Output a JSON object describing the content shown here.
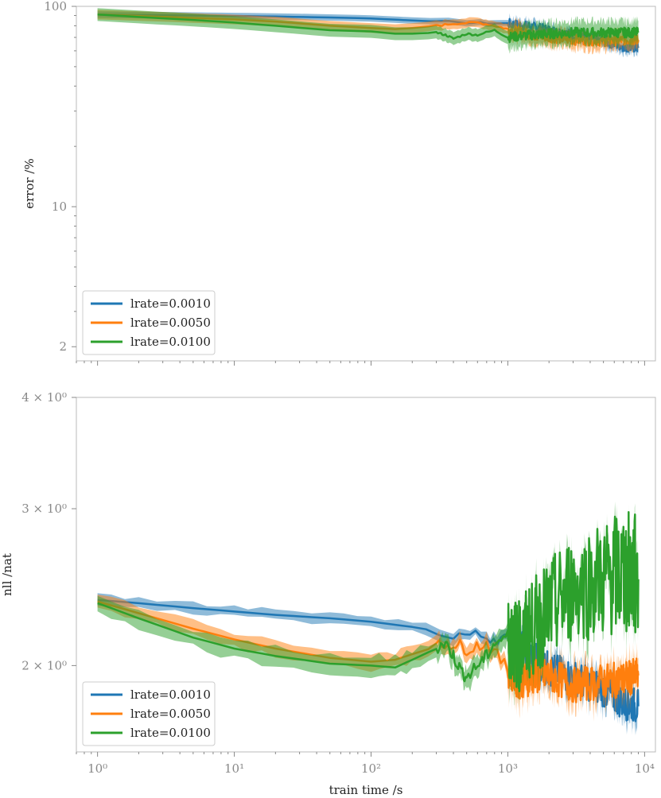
{
  "chart_data": [
    {
      "type": "line",
      "title": "",
      "xlabel": "",
      "ylabel": "error /%",
      "xscale": "log",
      "yscale": "log",
      "xlim": [
        0.7,
        12000
      ],
      "ylim": [
        1.7,
        100
      ],
      "y_ticks": [
        2,
        10,
        100
      ],
      "y_tick_labels": [
        "2",
        "10",
        "100"
      ],
      "grid": false,
      "legend_position": "lower-left",
      "series": [
        {
          "name": "lrate=0.0010",
          "color": "#1f77b4",
          "band": 2,
          "x": [
            1,
            2,
            5,
            10,
            20,
            50,
            100,
            200,
            500,
            1000,
            1500,
            2000,
            3000,
            5000,
            7000,
            9000
          ],
          "y": [
            91,
            90.5,
            90,
            89.5,
            89,
            88,
            87,
            85,
            83,
            82,
            79,
            76,
            72,
            67,
            63,
            62
          ]
        },
        {
          "name": "lrate=0.0050",
          "color": "#ff7f0e",
          "band": 3,
          "x": [
            1,
            2,
            5,
            10,
            20,
            50,
            100,
            150,
            200,
            300,
            400,
            600,
            800,
            1000,
            1500,
            2000,
            3000,
            5000,
            7000,
            9000
          ],
          "y": [
            91,
            89.5,
            87.5,
            86,
            84,
            80,
            78,
            77,
            78,
            80,
            82,
            83,
            80,
            77,
            72,
            70,
            68,
            67,
            68,
            68
          ]
        },
        {
          "name": "lrate=0.0100",
          "color": "#2ca02c",
          "band": 4,
          "x": [
            1,
            2,
            5,
            10,
            20,
            50,
            100,
            150,
            200,
            300,
            350,
            400,
            500,
            600,
            800,
            1000,
            1500,
            2000,
            3000,
            5000,
            7000,
            9000
          ],
          "y": [
            91,
            88.5,
            85.5,
            83,
            80,
            76,
            75,
            73,
            73,
            74,
            72,
            69,
            73,
            72,
            76,
            70,
            72,
            73,
            74,
            74,
            74,
            74
          ]
        }
      ]
    },
    {
      "type": "line",
      "title": "",
      "xlabel": "train time /s",
      "ylabel": "nll /nat",
      "xscale": "log",
      "yscale": "log",
      "xlim": [
        0.7,
        12000
      ],
      "ylim": [
        1.6,
        4.0
      ],
      "x_ticks": [
        1,
        10,
        100,
        1000,
        10000
      ],
      "x_tick_labels": [
        "10⁰",
        "10¹",
        "10²",
        "10³",
        "10⁴"
      ],
      "y_ticks": [
        2,
        3,
        4
      ],
      "y_tick_labels": [
        "2 × 10⁰",
        "3 × 10⁰",
        "4 × 10⁰"
      ],
      "grid": false,
      "legend_position": "lower-left",
      "series": [
        {
          "name": "lrate=0.0010",
          "color": "#1f77b4",
          "band": 0.03,
          "x": [
            1,
            2,
            5,
            10,
            20,
            50,
            100,
            200,
            400,
            700,
            1000,
            1500,
            2000,
            3000,
            5000,
            7000,
            9000
          ],
          "y": [
            2.37,
            2.35,
            2.32,
            2.3,
            2.28,
            2.26,
            2.24,
            2.21,
            2.17,
            2.155,
            2.14,
            2.05,
            1.98,
            1.94,
            1.88,
            1.82,
            1.8
          ]
        },
        {
          "name": "lrate=0.0050",
          "color": "#ff7f0e",
          "band": 0.04,
          "x": [
            1,
            2,
            5,
            10,
            20,
            50,
            100,
            150,
            200,
            300,
            400,
            500,
            700,
            1000,
            1200,
            1500,
            2000,
            3000,
            5000,
            7000,
            9000
          ],
          "y": [
            2.36,
            2.29,
            2.2,
            2.14,
            2.09,
            2.04,
            2.02,
            2.03,
            2.06,
            2.1,
            2.12,
            2.09,
            2.12,
            1.98,
            1.92,
            1.94,
            1.95,
            1.9,
            1.92,
            1.93,
            1.95
          ]
        },
        {
          "name": "lrate=0.0100",
          "color": "#2ca02c",
          "band": 0.05,
          "x": [
            1,
            2,
            5,
            10,
            20,
            50,
            100,
            150,
            200,
            300,
            350,
            400,
            450,
            500,
            600,
            700,
            800,
            1000,
            1200,
            1500,
            2000,
            3000,
            5000,
            7000,
            9000
          ],
          "y": [
            2.35,
            2.26,
            2.15,
            2.09,
            2.05,
            2.01,
            2.0,
            1.99,
            2.03,
            2.09,
            2.12,
            2.05,
            1.98,
            1.94,
            2.0,
            2.05,
            2.12,
            2.16,
            2.1,
            2.2,
            2.3,
            2.45,
            2.5,
            2.55,
            2.5
          ]
        }
      ]
    }
  ]
}
